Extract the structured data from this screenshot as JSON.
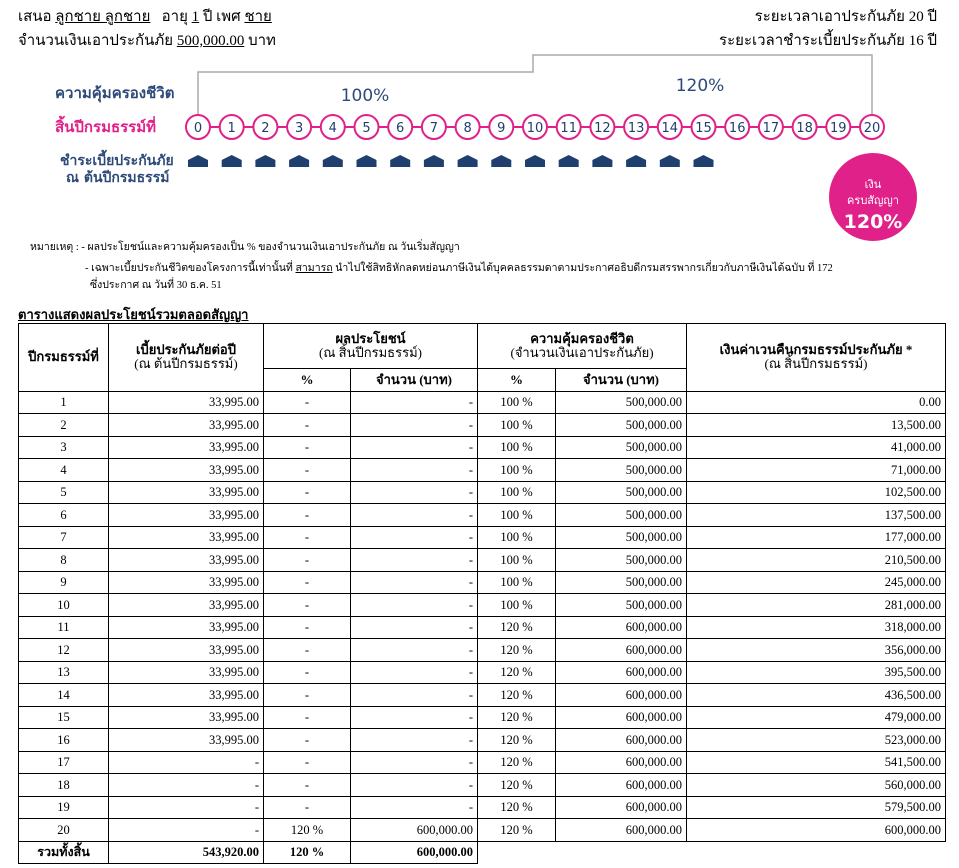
{
  "header": {
    "label": "เสนอ",
    "name": "ลูกชาย ลูกชาย",
    "age_label": "อายุ",
    "age": "1",
    "sex_label": "ปี เพศ",
    "sex": "ชาย",
    "sum_label": "จำนวนเงินเอาประกันภัย",
    "sum": "500,000.00",
    "sum_unit": "บาท",
    "coverage_period": "ระยะเวลาเอาประกันภัย 20 ปี",
    "payment_period": "ระยะเวลาชำระเบี้ยประกันภัย 16 ปี"
  },
  "diagram": {
    "coverage_label": "ความคุ้มครองชีวิต",
    "coverage_1": "100%",
    "coverage_2": "120%",
    "year_label": "สิ้นปีกรมธรรม์ที่",
    "years": [
      "0",
      "1",
      "2",
      "3",
      "4",
      "5",
      "6",
      "7",
      "8",
      "9",
      "10",
      "11",
      "12",
      "13",
      "14",
      "15",
      "16",
      "17",
      "18",
      "19",
      "20"
    ],
    "payment_label_1": "ชำระเบี้ยประกันภัย",
    "payment_label_2": "ณ ต้นปีกรมธรรม์",
    "maturity": [
      "เงิน",
      "ครบสัญญา",
      "120%"
    ]
  },
  "notes": {
    "label": "หมายเหตุ :",
    "item_1": "- ผลประโยชน์และความคุ้มครองเป็น % ของจำนวนเงินเอาประกันภัย ณ วันเริ่มสัญญา",
    "item_2a": "- เฉพาะเบี้ยประกันชีวิตของโครงการนี้เท่านั้นที่",
    "item_2b": "สามารถ",
    "item_2c": "นำไปใช้สิทธิหักลดหย่อนภาษีเงินได้บุคคลธรรมดาตามประกาศอธิบดีกรมสรรพากรเกี่ยวกับภาษีเงินได้ฉบับ ที่ 172",
    "item_2d": "ซึ่งประกาศ ณ วันที่ 30 ธ.ค. 51"
  },
  "table": {
    "title": "ตารางแสดงผลประโยชน์รวมตลอดสัญญา",
    "headers": {
      "year": "ปีกรมธรรม์ที่",
      "premium": "เบี้ยประกันภัยต่อปี",
      "premium_sub": "(ณ ต้นปีกรมธรรม์)",
      "benefit": "ผลประโยชน์",
      "benefit_sub": "(ณ สิ้นปีกรมธรรม์)",
      "benefit_pct": "%",
      "benefit_amt": "จำนวน (บาท)",
      "cover": "ความคุ้มครองชีวิต",
      "cover_sub": "(จำนวนเงินเอาประกันภัย)",
      "cover_pct": "%",
      "cover_amt": "จำนวน (บาท)",
      "surrender": "เงินค่าเวนคืนกรมธรรม์ประกันภัย *",
      "surrender_sub": "(ณ สิ้นปีกรมธรรม์)"
    },
    "rows": [
      [
        "1",
        "33,995.00",
        "-",
        "-",
        "100 %",
        "500,000.00",
        "0.00"
      ],
      [
        "2",
        "33,995.00",
        "-",
        "-",
        "100 %",
        "500,000.00",
        "13,500.00"
      ],
      [
        "3",
        "33,995.00",
        "-",
        "-",
        "100 %",
        "500,000.00",
        "41,000.00"
      ],
      [
        "4",
        "33,995.00",
        "-",
        "-",
        "100 %",
        "500,000.00",
        "71,000.00"
      ],
      [
        "5",
        "33,995.00",
        "-",
        "-",
        "100 %",
        "500,000.00",
        "102,500.00"
      ],
      [
        "6",
        "33,995.00",
        "-",
        "-",
        "100 %",
        "500,000.00",
        "137,500.00"
      ],
      [
        "7",
        "33,995.00",
        "-",
        "-",
        "100 %",
        "500,000.00",
        "177,000.00"
      ],
      [
        "8",
        "33,995.00",
        "-",
        "-",
        "100 %",
        "500,000.00",
        "210,500.00"
      ],
      [
        "9",
        "33,995.00",
        "-",
        "-",
        "100 %",
        "500,000.00",
        "245,000.00"
      ],
      [
        "10",
        "33,995.00",
        "-",
        "-",
        "100 %",
        "500,000.00",
        "281,000.00"
      ],
      [
        "11",
        "33,995.00",
        "-",
        "-",
        "120 %",
        "600,000.00",
        "318,000.00"
      ],
      [
        "12",
        "33,995.00",
        "-",
        "-",
        "120 %",
        "600,000.00",
        "356,000.00"
      ],
      [
        "13",
        "33,995.00",
        "-",
        "-",
        "120 %",
        "600,000.00",
        "395,500.00"
      ],
      [
        "14",
        "33,995.00",
        "-",
        "-",
        "120 %",
        "600,000.00",
        "436,500.00"
      ],
      [
        "15",
        "33,995.00",
        "-",
        "-",
        "120 %",
        "600,000.00",
        "479,000.00"
      ],
      [
        "16",
        "33,995.00",
        "-",
        "-",
        "120 %",
        "600,000.00",
        "523,000.00"
      ],
      [
        "17",
        "-",
        "-",
        "-",
        "120 %",
        "600,000.00",
        "541,500.00"
      ],
      [
        "18",
        "-",
        "-",
        "-",
        "120 %",
        "600,000.00",
        "560,000.00"
      ],
      [
        "19",
        "-",
        "-",
        "-",
        "120 %",
        "600,000.00",
        "579,500.00"
      ],
      [
        "20",
        "-",
        "120 %",
        "600,000.00",
        "120 %",
        "600,000.00",
        "600,000.00"
      ]
    ],
    "total": [
      "รวมทั้งสิ้น",
      "543,920.00",
      "120 %",
      "600,000.00"
    ]
  }
}
